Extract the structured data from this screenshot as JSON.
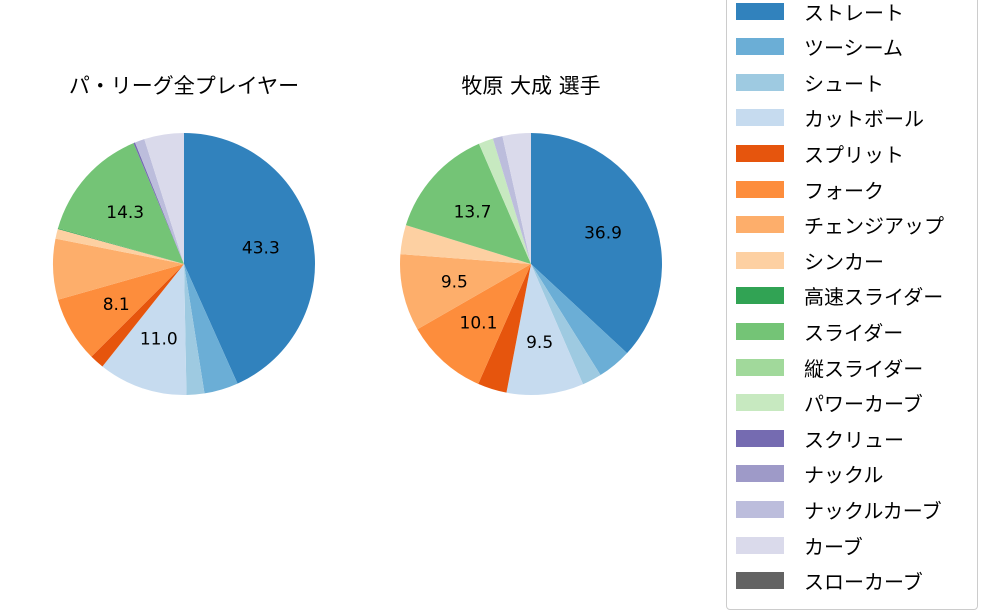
{
  "chart_data": [
    {
      "type": "pie",
      "title": "パ・リーグ全プレイヤー",
      "start_angle": "12 o'clock, clockwise",
      "slices": [
        {
          "label": "ストレート",
          "value": 43.3,
          "color": "#3182bd",
          "show_label": true
        },
        {
          "label": "ツーシーム",
          "value": 4.2,
          "color": "#6baed6",
          "show_label": false
        },
        {
          "label": "シュート",
          "value": 2.2,
          "color": "#9ecae1",
          "show_label": false
        },
        {
          "label": "カットボール",
          "value": 11.0,
          "color": "#c6dbef",
          "show_label": true
        },
        {
          "label": "スプリット",
          "value": 1.8,
          "color": "#e6550d",
          "show_label": false
        },
        {
          "label": "フォーク",
          "value": 8.1,
          "color": "#fd8d3c",
          "show_label": true
        },
        {
          "label": "チェンジアップ",
          "value": 7.5,
          "color": "#fdae6b",
          "show_label": false
        },
        {
          "label": "シンカー",
          "value": 1.2,
          "color": "#fdd0a2",
          "show_label": false
        },
        {
          "label": "高速スライダー",
          "value": 0.1,
          "color": "#31a354",
          "show_label": false
        },
        {
          "label": "スライダー",
          "value": 14.3,
          "color": "#74c476",
          "show_label": true
        },
        {
          "label": "スクリュー",
          "value": 0.2,
          "color": "#756bb1",
          "show_label": false
        },
        {
          "label": "ナックルカーブ",
          "value": 1.2,
          "color": "#bcbddc",
          "show_label": false
        },
        {
          "label": "カーブ",
          "value": 4.9,
          "color": "#dadaeb",
          "show_label": false
        }
      ]
    },
    {
      "type": "pie",
      "title": "牧原 大成  選手",
      "start_angle": "12 o'clock, clockwise",
      "slices": [
        {
          "label": "ストレート",
          "value": 36.9,
          "color": "#3182bd",
          "show_label": true
        },
        {
          "label": "ツーシーム",
          "value": 4.2,
          "color": "#6baed6",
          "show_label": false
        },
        {
          "label": "シュート",
          "value": 2.4,
          "color": "#9ecae1",
          "show_label": false
        },
        {
          "label": "カットボール",
          "value": 9.5,
          "color": "#c6dbef",
          "show_label": true
        },
        {
          "label": "スプリット",
          "value": 3.6,
          "color": "#e6550d",
          "show_label": false
        },
        {
          "label": "フォーク",
          "value": 10.1,
          "color": "#fd8d3c",
          "show_label": true
        },
        {
          "label": "チェンジアップ",
          "value": 9.5,
          "color": "#fdae6b",
          "show_label": true
        },
        {
          "label": "シンカー",
          "value": 3.6,
          "color": "#fdd0a2",
          "show_label": false
        },
        {
          "label": "スライダー",
          "value": 13.7,
          "color": "#74c476",
          "show_label": true
        },
        {
          "label": "パワーカーブ",
          "value": 1.8,
          "color": "#c7e9c0",
          "show_label": false
        },
        {
          "label": "ナックルカーブ",
          "value": 1.2,
          "color": "#bcbddc",
          "show_label": false
        },
        {
          "label": "カーブ",
          "value": 3.5,
          "color": "#dadaeb",
          "show_label": false
        }
      ]
    }
  ],
  "titles": {
    "left": "パ・リーグ全プレイヤー",
    "right": "牧原 大成  選手"
  },
  "legend": [
    {
      "label": "ストレート",
      "color": "#3182bd"
    },
    {
      "label": "ツーシーム",
      "color": "#6baed6"
    },
    {
      "label": "シュート",
      "color": "#9ecae1"
    },
    {
      "label": "カットボール",
      "color": "#c6dbef"
    },
    {
      "label": "スプリット",
      "color": "#e6550d"
    },
    {
      "label": "フォーク",
      "color": "#fd8d3c"
    },
    {
      "label": "チェンジアップ",
      "color": "#fdae6b"
    },
    {
      "label": "シンカー",
      "color": "#fdd0a2"
    },
    {
      "label": "高速スライダー",
      "color": "#31a354"
    },
    {
      "label": "スライダー",
      "color": "#74c476"
    },
    {
      "label": "縦スライダー",
      "color": "#a1d99b"
    },
    {
      "label": "パワーカーブ",
      "color": "#c7e9c0"
    },
    {
      "label": "スクリュー",
      "color": "#756bb1"
    },
    {
      "label": "ナックル",
      "color": "#9e9ac8"
    },
    {
      "label": "ナックルカーブ",
      "color": "#bcbddc"
    },
    {
      "label": "カーブ",
      "color": "#dadaeb"
    },
    {
      "label": "スローカーブ",
      "color": "#636363"
    }
  ]
}
